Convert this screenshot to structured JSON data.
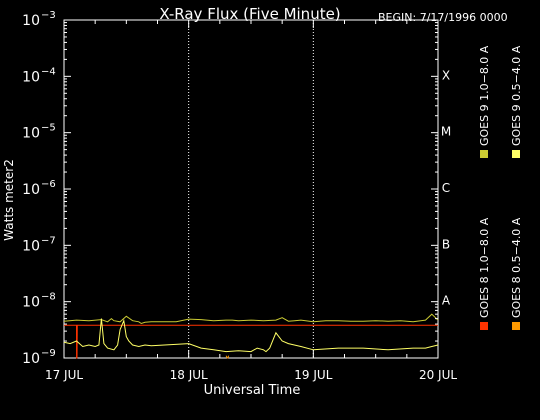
{
  "chart_data": {
    "type": "line",
    "title": "X-Ray Flux (Five Minute)",
    "begin_label": "BEGIN: 7/17/1996 0000",
    "xlabel": "Universal Time",
    "ylabel": "Watts meter2",
    "x_ticks": [
      {
        "x": 0,
        "label": "17 JUL"
      },
      {
        "x": 1,
        "label": "18 JUL"
      },
      {
        "x": 2,
        "label": "19 JUL"
      },
      {
        "x": 3,
        "label": "20 JUL"
      }
    ],
    "xlim": [
      0,
      3
    ],
    "ylim": [
      1e-09,
      0.001
    ],
    "y_scale": "log",
    "y_ticks": [
      {
        "exp": -9,
        "label": "10",
        "sup": "−9"
      },
      {
        "exp": -8,
        "label": "10",
        "sup": "−8"
      },
      {
        "exp": -7,
        "label": "10",
        "sup": "−7"
      },
      {
        "exp": -6,
        "label": "10",
        "sup": "−6"
      },
      {
        "exp": -5,
        "label": "10",
        "sup": "−5"
      },
      {
        "exp": -4,
        "label": "10",
        "sup": "−4"
      },
      {
        "exp": -3,
        "label": "10",
        "sup": "−3"
      }
    ],
    "flare_classes": [
      {
        "label": "A",
        "exp": -8
      },
      {
        "label": "B",
        "exp": -7
      },
      {
        "label": "C",
        "exp": -6
      },
      {
        "label": "M",
        "exp": -5
      },
      {
        "label": "X",
        "exp": -4
      }
    ],
    "vertical_grid_days": [
      1,
      2
    ],
    "grid_style": "dotted",
    "series": [
      {
        "name": "GOES 8 1.0−8.0 A",
        "color": "#ff3300",
        "x": [
          0.0,
          0.1,
          0.101,
          0.104,
          0.107,
          0.11,
          0.2,
          0.4,
          0.8,
          1.2,
          1.6,
          2.0,
          2.4,
          2.8,
          3.0
        ],
        "y": [
          3.8e-09,
          3.8e-09,
          5e-10,
          5e-10,
          3.8e-09,
          3.8e-09,
          3.8e-09,
          3.8e-09,
          3.8e-09,
          3.8e-09,
          3.8e-09,
          3.8e-09,
          3.8e-09,
          3.8e-09,
          3.8e-09
        ]
      },
      {
        "name": "GOES 8 0.5−4.0 A",
        "color": "#ff9900",
        "x": [
          1.3,
          1.31,
          1.315,
          1.32
        ],
        "y": [
          1.1e-09,
          5e-10,
          5e-10,
          1.1e-09
        ]
      },
      {
        "name": "GOES 9 1.0−8.0 A",
        "color": "#cccc33",
        "x": [
          0.0,
          0.1,
          0.2,
          0.3,
          0.35,
          0.38,
          0.4,
          0.45,
          0.5,
          0.55,
          0.6,
          0.62,
          0.65,
          0.7,
          0.8,
          0.9,
          1.0,
          1.1,
          1.2,
          1.3,
          1.35,
          1.4,
          1.5,
          1.6,
          1.7,
          1.75,
          1.8,
          1.85,
          1.9,
          2.0,
          2.1,
          2.2,
          2.3,
          2.4,
          2.5,
          2.6,
          2.7,
          2.8,
          2.9,
          2.95,
          3.0
        ],
        "y": [
          4.5e-09,
          4.7e-09,
          4.6e-09,
          4.8e-09,
          4.4e-09,
          5e-09,
          4.6e-09,
          4.4e-09,
          5.5e-09,
          4.6e-09,
          4.4e-09,
          4.1e-09,
          4.3e-09,
          4.4e-09,
          4.4e-09,
          4.4e-09,
          4.9e-09,
          4.8e-09,
          4.6e-09,
          4.7e-09,
          4.7e-09,
          4.6e-09,
          4.7e-09,
          4.6e-09,
          4.7e-09,
          5.2e-09,
          4.5e-09,
          4.6e-09,
          4.7e-09,
          4.4e-09,
          4.6e-09,
          4.6e-09,
          4.5e-09,
          4.5e-09,
          4.6e-09,
          4.5e-09,
          4.6e-09,
          4.4e-09,
          4.7e-09,
          6e-09,
          4.7e-09
        ]
      },
      {
        "name": "GOES 9 0.5−4.0 A",
        "color": "#ffff66",
        "x": [
          0.0,
          0.05,
          0.1,
          0.15,
          0.2,
          0.25,
          0.28,
          0.3,
          0.32,
          0.35,
          0.4,
          0.43,
          0.45,
          0.48,
          0.5,
          0.52,
          0.55,
          0.6,
          0.65,
          0.7,
          1.0,
          1.1,
          1.2,
          1.3,
          1.4,
          1.5,
          1.55,
          1.6,
          1.62,
          1.65,
          1.7,
          1.75,
          1.8,
          1.9,
          2.0,
          2.2,
          2.4,
          2.6,
          2.8,
          2.9,
          2.95,
          3.0
        ],
        "y": [
          1.9e-09,
          1.8e-09,
          2e-09,
          1.6e-09,
          1.7e-09,
          1.6e-09,
          1.7e-09,
          5e-09,
          1.8e-09,
          1.5e-09,
          1.4e-09,
          1.7e-09,
          3.2e-09,
          4.6e-09,
          2.4e-09,
          2e-09,
          1.7e-09,
          1.6e-09,
          1.7e-09,
          1.65e-09,
          1.8e-09,
          1.5e-09,
          1.4e-09,
          1.3e-09,
          1.35e-09,
          1.3e-09,
          1.5e-09,
          1.4e-09,
          1.3e-09,
          1.5e-09,
          2.8e-09,
          2e-09,
          1.8e-09,
          1.6e-09,
          1.4e-09,
          1.5e-09,
          1.5e-09,
          1.4e-09,
          1.5e-09,
          1.5e-09,
          1.6e-09,
          1.7e-09
        ]
      }
    ],
    "legend_placement": "right, vertical"
  }
}
